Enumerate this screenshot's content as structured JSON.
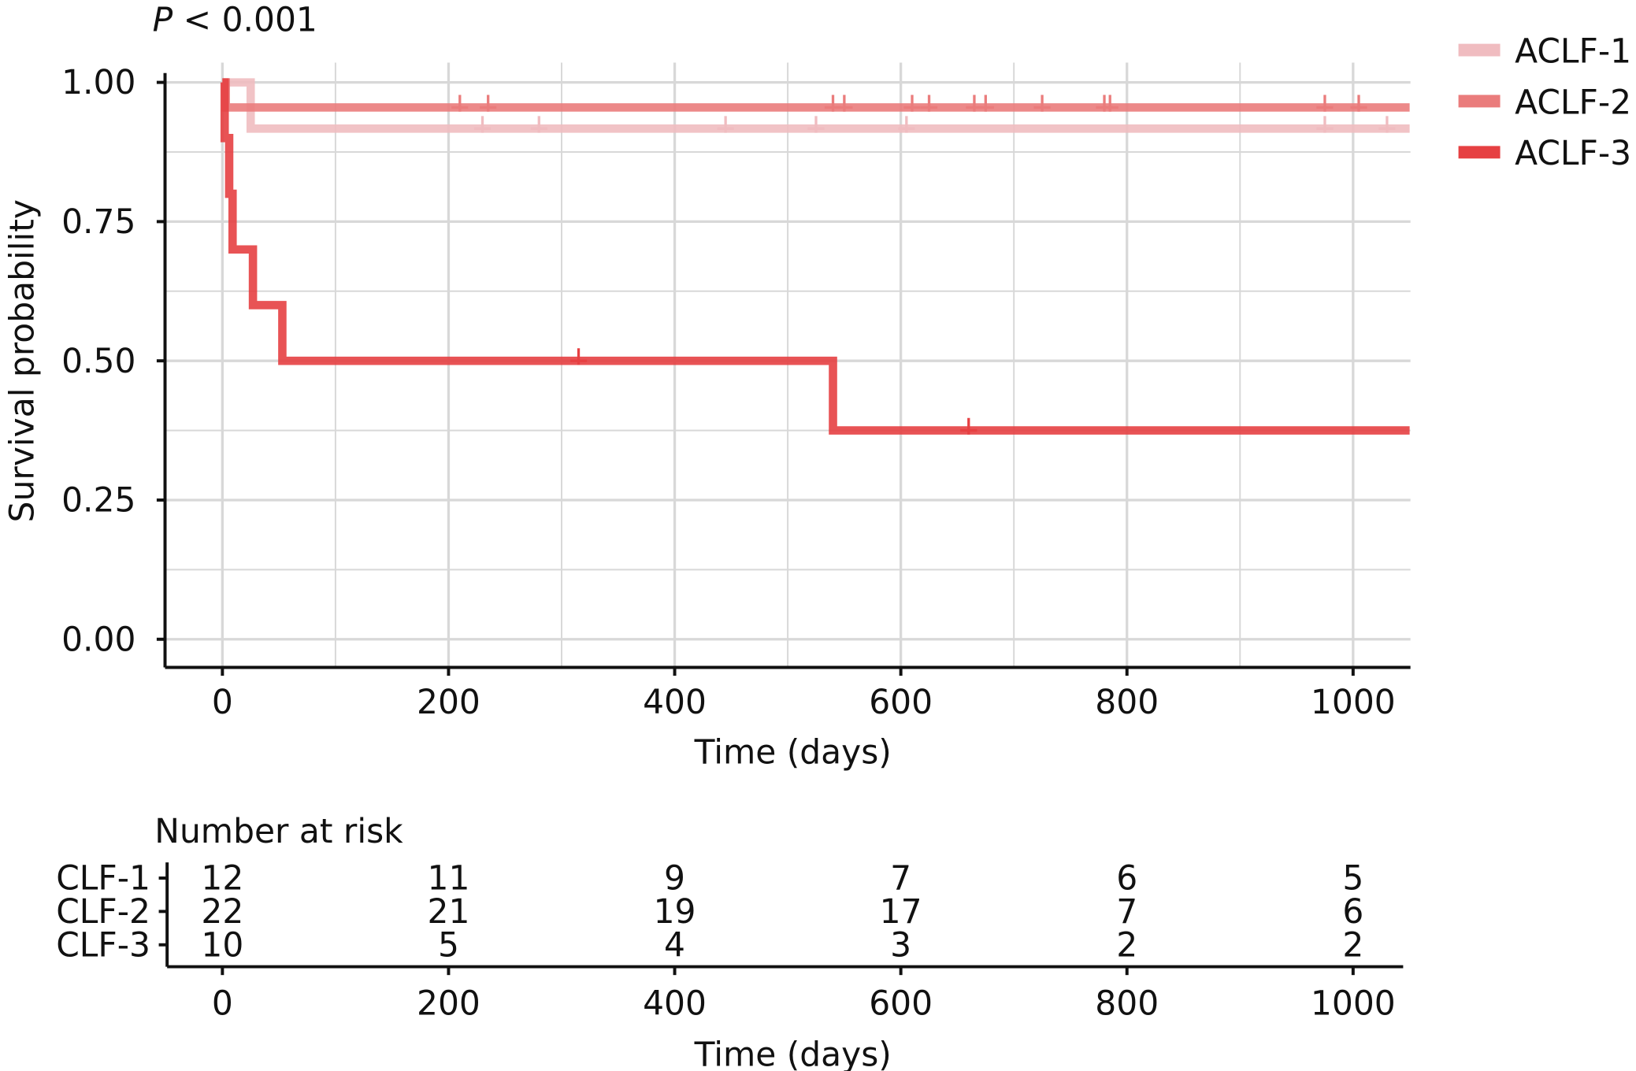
{
  "chart_data": {
    "type": "line",
    "subtype": "kaplan-meier",
    "annotation_p": "P",
    "annotation_rest": " < 0.001",
    "xlabel": "Time (days)",
    "ylabel": "Survival probability",
    "xlim": [
      -50,
      1050
    ],
    "ylim": [
      0,
      1
    ],
    "xticks": [
      "0",
      "200",
      "400",
      "600",
      "800",
      "1000"
    ],
    "xtick_values": [
      0,
      200,
      400,
      600,
      800,
      1000
    ],
    "yticks": [
      "0.00",
      "0.25",
      "0.50",
      "0.75",
      "1.00"
    ],
    "ytick_values": [
      0,
      0.25,
      0.5,
      0.75,
      1.0
    ],
    "grid": true,
    "legend_position": "top-right",
    "series": [
      {
        "name": "ACLF-1",
        "color": "#f0bcc0",
        "steps": [
          [
            0,
            1.0
          ],
          [
            25,
            0.917
          ],
          [
            1050,
            0.917
          ]
        ],
        "censors": [
          230,
          280,
          445,
          525,
          605,
          975,
          1030
        ]
      },
      {
        "name": "ACLF-2",
        "color": "#ea7c7c",
        "steps": [
          [
            0,
            1.0
          ],
          [
            3,
            0.955
          ],
          [
            1050,
            0.955
          ]
        ],
        "censors": [
          210,
          235,
          540,
          550,
          610,
          625,
          665,
          675,
          725,
          780,
          785,
          975,
          1005
        ]
      },
      {
        "name": "ACLF-3",
        "color": "#e64042",
        "steps": [
          [
            0,
            1.0
          ],
          [
            2,
            0.9
          ],
          [
            6,
            0.8
          ],
          [
            9,
            0.7
          ],
          [
            27,
            0.6
          ],
          [
            53,
            0.5
          ],
          [
            540,
            0.375
          ],
          [
            1050,
            0.375
          ]
        ],
        "censors": [
          315,
          660
        ]
      }
    ],
    "risk_table": {
      "title": "Number at risk",
      "xlabel": "Time (days)",
      "rows": [
        {
          "label": "CLF-1",
          "color": "#f0bcc0",
          "values": [
            "12",
            "11",
            "9",
            "7",
            "6",
            "5"
          ]
        },
        {
          "label": "CLF-2",
          "color": "#ea7c7c",
          "values": [
            "22",
            "21",
            "19",
            "17",
            "7",
            "6"
          ]
        },
        {
          "label": "CLF-3",
          "color": "#e62020",
          "values": [
            "10",
            "5",
            "4",
            "3",
            "2",
            "2"
          ]
        }
      ]
    }
  }
}
